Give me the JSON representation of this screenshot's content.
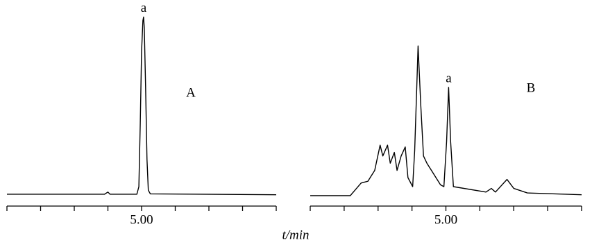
{
  "xlabel": "t/min",
  "chart_data": [
    {
      "type": "line",
      "label": "A",
      "xlim": [
        3,
        7
      ],
      "ylim": [
        0,
        100
      ],
      "xticks": [
        {
          "value": 5,
          "label": "5.00"
        }
      ],
      "xminor_ticks": [
        3,
        3.5,
        4,
        4.5,
        5,
        5.5,
        6,
        6.5,
        7
      ],
      "color": "#000000",
      "x": [
        3.0,
        4.45,
        4.5,
        4.53,
        4.93,
        4.96,
        4.98,
        5.0,
        5.02,
        5.03,
        5.04,
        5.06,
        5.08,
        5.1,
        5.13,
        7.0
      ],
      "values": [
        0.8,
        0.8,
        2,
        0.8,
        0.8,
        5,
        40,
        80,
        97,
        99,
        93,
        60,
        20,
        3,
        1,
        0.5
      ],
      "annotations": [
        {
          "text": "a",
          "x": 5.03,
          "y": 99
        }
      ]
    },
    {
      "type": "line",
      "label": "B",
      "xlim": [
        3,
        7
      ],
      "ylim": [
        0,
        100
      ],
      "xticks": [
        {
          "value": 5,
          "label": "5.00"
        }
      ],
      "xminor_ticks": [
        3,
        3.5,
        4,
        4.5,
        5,
        5.5,
        6,
        6.5,
        7
      ],
      "color": "#000000",
      "x": [
        3.0,
        3.59,
        3.75,
        3.85,
        3.95,
        4.03,
        4.07,
        4.14,
        4.18,
        4.24,
        4.28,
        4.34,
        4.4,
        4.44,
        4.51,
        4.54,
        4.57,
        4.59,
        4.63,
        4.67,
        4.72,
        4.82,
        4.92,
        4.97,
        5.01,
        5.04,
        5.07,
        5.11,
        5.59,
        5.67,
        5.73,
        5.9,
        6.0,
        6.2,
        7.0
      ],
      "values": [
        0,
        0,
        7,
        8,
        14,
        28,
        22,
        28,
        18,
        24,
        14,
        22,
        27,
        10,
        5,
        25,
        60,
        83,
        50,
        22,
        18,
        12,
        6,
        5,
        30,
        60,
        30,
        5,
        2,
        4,
        2,
        9,
        4,
        1.5,
        0.5
      ],
      "annotations": [
        {
          "text": "a",
          "x": 5.04,
          "y": 60
        }
      ]
    }
  ]
}
